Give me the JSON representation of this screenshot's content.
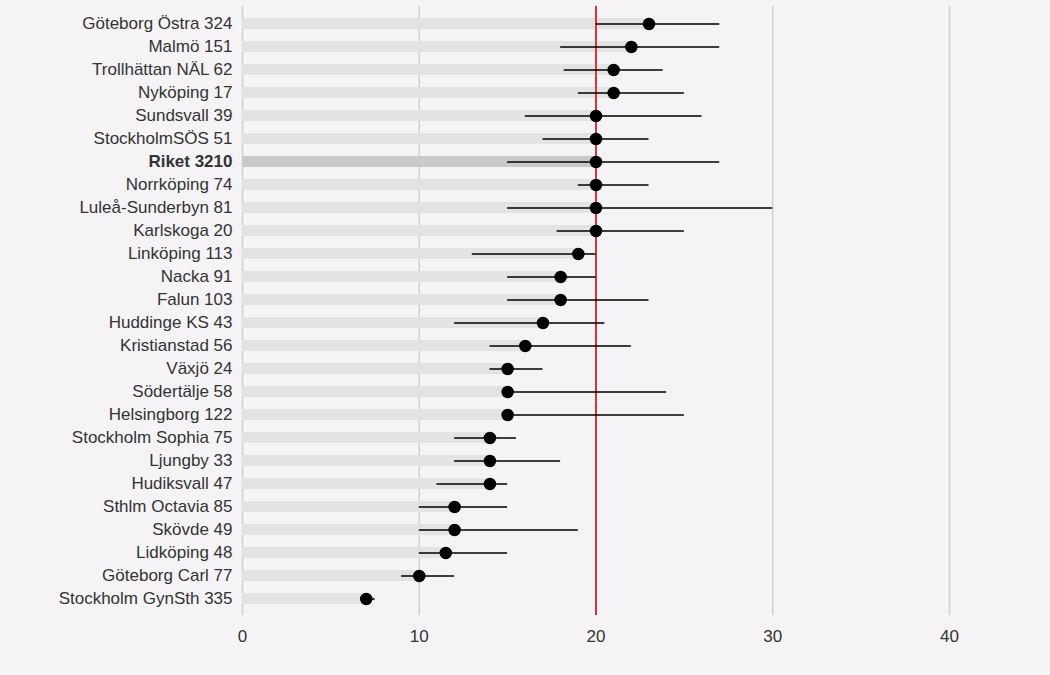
{
  "chart_data": {
    "type": "dot",
    "orientation": "horizontal",
    "categories": [
      "Göteborg Östra 324",
      "Malmö 151",
      "Trollhättan NÄL 62",
      "Nyköping 17",
      "Sundsvall 39",
      "StockholmSÖS 51",
      "Riket 3210",
      "Norrköping 74",
      "Luleå-Sunderbyn 81",
      "Karlskoga 20",
      "Linköping 113",
      "Nacka 91",
      "Falun 103",
      "Huddinge KS 43",
      "Kristianstad 56",
      "Växjö 24",
      "Södertälje 58",
      "Helsingborg 122",
      "Stockholm Sophia 75",
      "Ljungby 33",
      "Hudiksvall 47",
      "Sthlm Octavia 85",
      "Skövde 49",
      "Lidköping 48",
      "Göteborg Carl 77",
      "Stockholm GynSth 335"
    ],
    "values": [
      23,
      22,
      21,
      21,
      20,
      20,
      20,
      20,
      20,
      20,
      19,
      18,
      18,
      17,
      16,
      15,
      15,
      15,
      14,
      14,
      14,
      12,
      12,
      11.5,
      10,
      7
    ],
    "error_low": [
      20,
      18,
      18.2,
      19,
      16,
      17,
      15,
      19,
      15,
      17.8,
      13,
      15,
      15,
      12,
      14,
      14,
      15,
      15,
      12,
      12,
      11,
      10,
      10,
      10,
      9,
      6.8
    ],
    "error_high": [
      27,
      27,
      23.8,
      25,
      26,
      23,
      27,
      23,
      30,
      25,
      20,
      20,
      23,
      20.5,
      22,
      17,
      24,
      25,
      15.5,
      18,
      15,
      15,
      19,
      15,
      12,
      7.5
    ],
    "highlight": "Riket 3210",
    "reference_value": 20,
    "color": "#000000",
    "xlim": [
      0,
      40
    ],
    "xticks": [
      0,
      10,
      20,
      30,
      40
    ],
    "grid": true
  }
}
